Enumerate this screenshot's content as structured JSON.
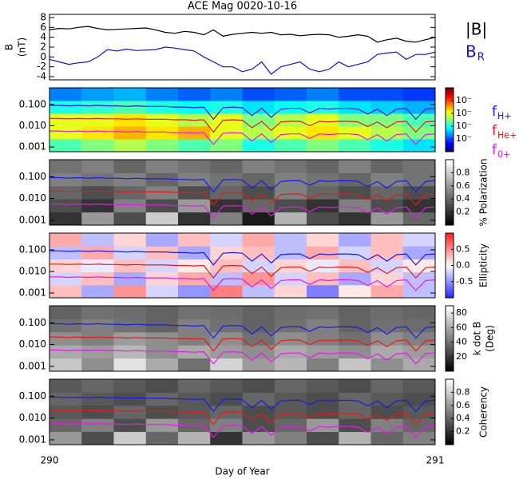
{
  "chart_data": [
    {
      "type": "line",
      "title": "ACE Mag 0020-10-16",
      "ylabel": [
        "B",
        "(nT)"
      ],
      "x": [
        290,
        290.025,
        290.05,
        290.075,
        290.1,
        290.125,
        290.15,
        290.175,
        290.2,
        290.225,
        290.25,
        290.275,
        290.3,
        290.325,
        290.35,
        290.375,
        290.4,
        290.425,
        290.45,
        290.475,
        290.5,
        290.525,
        290.55,
        290.575,
        290.6,
        290.625,
        290.65,
        290.675,
        290.7,
        290.725,
        290.75,
        290.775,
        290.8,
        290.825,
        290.85,
        290.875,
        290.9,
        290.925,
        290.95,
        290.975,
        291
      ],
      "xlim": [
        290,
        291
      ],
      "ylim": [
        -4.65,
        8.65
      ],
      "yticks": [
        -4,
        -2,
        0,
        2,
        4,
        6,
        8
      ],
      "series": [
        {
          "name": "|B|",
          "color": "#000000",
          "values": [
            5.5,
            5.8,
            5.7,
            6,
            6.2,
            5.8,
            5.5,
            5.6,
            5.7,
            5.8,
            5.9,
            5.5,
            5,
            4.8,
            5.2,
            5,
            4.5,
            5.5,
            4.2,
            4.6,
            4.8,
            5,
            4.8,
            5,
            4.5,
            4.6,
            4.3,
            4.5,
            4.6,
            4.5,
            4,
            4.2,
            4.5,
            4.2,
            3,
            3.5,
            3.8,
            3.2,
            3,
            3.5,
            4
          ]
        },
        {
          "name": "B",
          "subscript": "R",
          "color": "#1010e0",
          "values": [
            -0.5,
            -1,
            -1.5,
            -1.2,
            -1,
            0,
            1.5,
            1.2,
            1.6,
            1.3,
            1.4,
            1.5,
            2,
            1.8,
            1.5,
            1.2,
            0,
            -1,
            -2,
            -2,
            -3,
            -2.5,
            -1,
            -3.5,
            -2,
            -1.5,
            -1,
            -2.5,
            -3,
            -2.5,
            -1,
            -2,
            -1.5,
            -1,
            0.5,
            0.8,
            1,
            -0.5,
            0.5,
            0.5,
            1
          ]
        }
      ]
    },
    {
      "type": "heatmap",
      "colormap": "jet",
      "log_y": true,
      "xlim": [
        290,
        291
      ],
      "ylim": [
        0.0006,
        0.6
      ],
      "yticks": [
        0.001,
        {
          "value": 0.01,
          "label": "0.010"
        },
        {
          "value": 0.1,
          "label": "0.100"
        }
      ],
      "zlim": [
        0,
        1
      ],
      "zticks": [
        {
          "value": 0.2,
          "label": "10⁻"
        },
        {
          "value": 0.4,
          "label": "10⁻"
        },
        {
          "value": 0.6,
          "label": "10⁻"
        },
        {
          "value": 0.8,
          "label": "10⁻"
        }
      ],
      "z": [
        [
          0.45,
          0.5,
          0.55,
          0.5,
          0.45,
          0.5,
          0.4,
          0.45,
          0.5,
          0.45,
          0.4,
          0.35
        ],
        [
          0.6,
          0.65,
          0.7,
          0.65,
          0.7,
          0.6,
          0.55,
          0.6,
          0.65,
          0.6,
          0.55,
          0.5
        ],
        [
          0.6,
          0.6,
          0.65,
          0.6,
          0.55,
          0.6,
          0.5,
          0.55,
          0.6,
          0.5,
          0.5,
          0.45
        ],
        [
          0.4,
          0.42,
          0.45,
          0.4,
          0.38,
          0.4,
          0.35,
          0.38,
          0.4,
          0.35,
          0.33,
          0.3
        ],
        [
          0.25,
          0.28,
          0.3,
          0.25,
          0.22,
          0.25,
          0.2,
          0.22,
          0.25,
          0.2,
          0.2,
          0.18
        ]
      ]
    },
    {
      "type": "heatmap",
      "colormap": "gray",
      "log_y": true,
      "xlim": [
        290,
        291
      ],
      "ylim": [
        0.0006,
        0.6
      ],
      "yticks": [
        0.001,
        {
          "value": 0.01,
          "label": "0.010"
        },
        {
          "value": 0.1,
          "label": "0.100"
        }
      ],
      "zlim": [
        0,
        1
      ],
      "zticks": [
        0.2,
        0.4,
        0.6,
        0.8
      ],
      "zlabel": [
        "% Polarization"
      ],
      "z": [
        [
          0.2,
          0.6,
          0.3,
          0.8,
          0.2,
          0.5,
          0.1,
          0.7,
          0.3,
          0.2,
          0.6,
          0.4
        ],
        [
          0.3,
          0.2,
          0.5,
          0.3,
          0.6,
          0.2,
          0.4,
          0.3,
          0.2,
          0.5,
          0.3,
          0.2
        ],
        [
          0.4,
          0.3,
          0.4,
          0.5,
          0.3,
          0.4,
          0.3,
          0.5,
          0.4,
          0.3,
          0.4,
          0.3
        ],
        [
          0.5,
          0.45,
          0.5,
          0.4,
          0.5,
          0.45,
          0.4,
          0.5,
          0.45,
          0.4,
          0.5,
          0.45
        ],
        [
          0.45,
          0.5,
          0.4,
          0.5,
          0.45,
          0.4,
          0.5,
          0.45,
          0.4,
          0.5,
          0.4,
          0.45
        ]
      ]
    },
    {
      "type": "heatmap",
      "colormap": "bwr",
      "log_y": true,
      "xlim": [
        290,
        291
      ],
      "ylim": [
        0.0006,
        0.6
      ],
      "yticks": [
        0.001,
        {
          "value": 0.01,
          "label": "0.010"
        },
        {
          "value": 0.1,
          "label": "0.100"
        }
      ],
      "zlim": [
        -1,
        1
      ],
      "zticks": [
        -0.5,
        {
          "value": 0,
          "label": "0.0"
        },
        0.5
      ],
      "zlabel": [
        "Ellipticity"
      ],
      "z": [
        [
          0.3,
          -0.4,
          0.5,
          -0.2,
          -0.5,
          0.6,
          -0.3,
          0.2,
          -0.6,
          0.1,
          0.4,
          -0.3
        ],
        [
          -0.2,
          0.3,
          -0.4,
          0.2,
          0.4,
          -0.3,
          0.5,
          -0.2,
          0.3,
          -0.4,
          0.2,
          -0.3
        ],
        [
          0.2,
          -0.1,
          0.3,
          -0.2,
          0.1,
          0.3,
          -0.2,
          0.2,
          -0.1,
          0.3,
          -0.2,
          0.1
        ],
        [
          -0.3,
          0.4,
          -0.2,
          0.3,
          -0.4,
          0.2,
          0.3,
          -0.3,
          0.4,
          -0.2,
          0.3,
          -0.4
        ],
        [
          0.4,
          -0.3,
          0.2,
          -0.4,
          0.3,
          -0.2,
          0.4,
          -0.3,
          0.2,
          -0.4,
          0.3,
          -0.2
        ]
      ]
    },
    {
      "type": "heatmap",
      "colormap": "gray",
      "log_y": true,
      "xlim": [
        290,
        291
      ],
      "ylim": [
        0.0006,
        0.6
      ],
      "yticks": [
        0.001,
        {
          "value": 0.01,
          "label": "0.010"
        },
        {
          "value": 0.1,
          "label": "0.100"
        }
      ],
      "zlim": [
        0,
        90
      ],
      "zticks": [
        20,
        40,
        60,
        80
      ],
      "zlabel": [
        "k dot B",
        "(Deg)"
      ],
      "z": [
        [
          70,
          50,
          80,
          60,
          40,
          75,
          55,
          65,
          45,
          70,
          50,
          60
        ],
        [
          60,
          55,
          65,
          50,
          60,
          55,
          50,
          60,
          55,
          50,
          60,
          55
        ],
        [
          50,
          45,
          55,
          50,
          45,
          50,
          40,
          50,
          45,
          40,
          50,
          45
        ],
        [
          40,
          45,
          40,
          35,
          45,
          40,
          35,
          40,
          45,
          35,
          40,
          38
        ],
        [
          35,
          40,
          38,
          35,
          40,
          38,
          35,
          38,
          40,
          35,
          38,
          36
        ]
      ]
    },
    {
      "type": "heatmap",
      "colormap": "gray",
      "log_y": true,
      "xlim": [
        290,
        291
      ],
      "ylim": [
        0.0006,
        0.6
      ],
      "yticks": [
        0.001,
        {
          "value": 0.01,
          "label": "0.010"
        },
        {
          "value": 0.1,
          "label": "0.100"
        }
      ],
      "zlim": [
        0,
        1
      ],
      "zticks": [
        0.2,
        0.4,
        0.6,
        0.8
      ],
      "zlabel": [
        "Coherency"
      ],
      "xticks": [
        290,
        291
      ],
      "xlabel": "Day of Year",
      "z": [
        [
          0.6,
          0.3,
          0.8,
          0.4,
          0.7,
          0.2,
          0.6,
          0.5,
          0.3,
          0.7,
          0.4,
          0.5
        ],
        [
          0.4,
          0.5,
          0.3,
          0.6,
          0.4,
          0.5,
          0.3,
          0.4,
          0.6,
          0.3,
          0.5,
          0.4
        ],
        [
          0.35,
          0.3,
          0.4,
          0.3,
          0.35,
          0.4,
          0.3,
          0.35,
          0.3,
          0.4,
          0.3,
          0.35
        ],
        [
          0.4,
          0.35,
          0.3,
          0.4,
          0.35,
          0.3,
          0.4,
          0.35,
          0.3,
          0.4,
          0.35,
          0.3
        ],
        [
          0.35,
          0.4,
          0.35,
          0.3,
          0.4,
          0.35,
          0.3,
          0.4,
          0.35,
          0.3,
          0.4,
          0.35
        ]
      ]
    }
  ],
  "overlay": {
    "x": [
      290,
      290.025,
      290.05,
      290.075,
      290.1,
      290.125,
      290.15,
      290.175,
      290.2,
      290.225,
      290.25,
      290.275,
      290.3,
      290.325,
      290.35,
      290.375,
      290.4,
      290.425,
      290.45,
      290.475,
      290.5,
      290.525,
      290.55,
      290.575,
      290.6,
      290.625,
      290.65,
      290.675,
      290.7,
      290.725,
      290.75,
      290.775,
      290.8,
      290.825,
      290.85,
      290.875,
      290.9,
      290.925,
      290.95,
      290.975,
      291
    ],
    "series": [
      {
        "name": "f",
        "subscript": "H+",
        "color": "#1a1ae6",
        "values": [
          0.09,
          0.09,
          0.085,
          0.09,
          0.085,
          0.09,
          0.085,
          0.085,
          0.08,
          0.085,
          0.08,
          0.08,
          0.08,
          0.075,
          0.075,
          0.07,
          0.075,
          0.02,
          0.07,
          0.075,
          0.07,
          0.03,
          0.065,
          0.025,
          0.06,
          0.065,
          0.065,
          0.04,
          0.065,
          0.06,
          0.065,
          0.065,
          0.06,
          0.035,
          0.06,
          0.03,
          0.06,
          0.065,
          0.02,
          0.06,
          0.065
        ]
      },
      {
        "name": "f",
        "subscript": "He+",
        "color": "#e61a1a",
        "values": [
          0.022,
          0.022,
          0.021,
          0.022,
          0.021,
          0.022,
          0.021,
          0.021,
          0.02,
          0.021,
          0.02,
          0.02,
          0.02,
          0.019,
          0.019,
          0.018,
          0.019,
          0.005,
          0.018,
          0.019,
          0.018,
          0.008,
          0.016,
          0.006,
          0.015,
          0.016,
          0.016,
          0.01,
          0.016,
          0.015,
          0.016,
          0.016,
          0.015,
          0.009,
          0.015,
          0.008,
          0.015,
          0.016,
          0.005,
          0.015,
          0.016
        ]
      },
      {
        "name": "f",
        "subscript": "0+",
        "color": "#e61ae6",
        "values": [
          0.0056,
          0.0056,
          0.0053,
          0.0056,
          0.0053,
          0.0056,
          0.0053,
          0.0053,
          0.005,
          0.0053,
          0.005,
          0.005,
          0.005,
          0.0047,
          0.0047,
          0.0044,
          0.0047,
          0.0013,
          0.0044,
          0.0047,
          0.0044,
          0.0019,
          0.0041,
          0.0016,
          0.0038,
          0.0041,
          0.0041,
          0.0025,
          0.0041,
          0.0038,
          0.0041,
          0.0041,
          0.0038,
          0.0022,
          0.0038,
          0.0019,
          0.0038,
          0.0041,
          0.0013,
          0.0038,
          0.0041
        ]
      }
    ]
  }
}
